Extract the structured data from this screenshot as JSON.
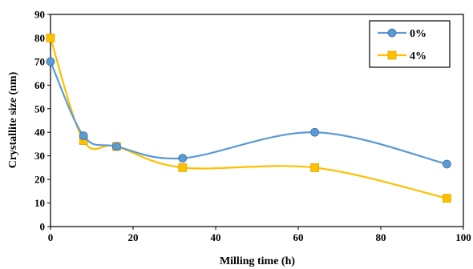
{
  "chart_data": {
    "type": "line",
    "title": "",
    "xlabel": "Milling time (h)",
    "ylabel": "Crystallite size (nm)",
    "xlim": [
      0,
      100
    ],
    "ylim": [
      0,
      90
    ],
    "xticks": [
      "0",
      "20",
      "40",
      "60",
      "80",
      "100"
    ],
    "yticks": [
      "0",
      "10",
      "20",
      "30",
      "40",
      "50",
      "60",
      "70",
      "80",
      "90"
    ],
    "grid": false,
    "smooth": true,
    "legend_position": "top-right",
    "series": [
      {
        "name": "0%",
        "color": "#5B9BD5",
        "marker": "circle",
        "x": [
          0,
          8,
          16,
          32,
          64,
          96
        ],
        "y": [
          70,
          38.5,
          34,
          29,
          40,
          26.5
        ]
      },
      {
        "name": "4%",
        "color": "#FFC000",
        "marker": "square",
        "x": [
          0,
          8,
          16,
          32,
          64,
          96
        ],
        "y": [
          80,
          36.5,
          34,
          25,
          25,
          12
        ]
      }
    ]
  }
}
